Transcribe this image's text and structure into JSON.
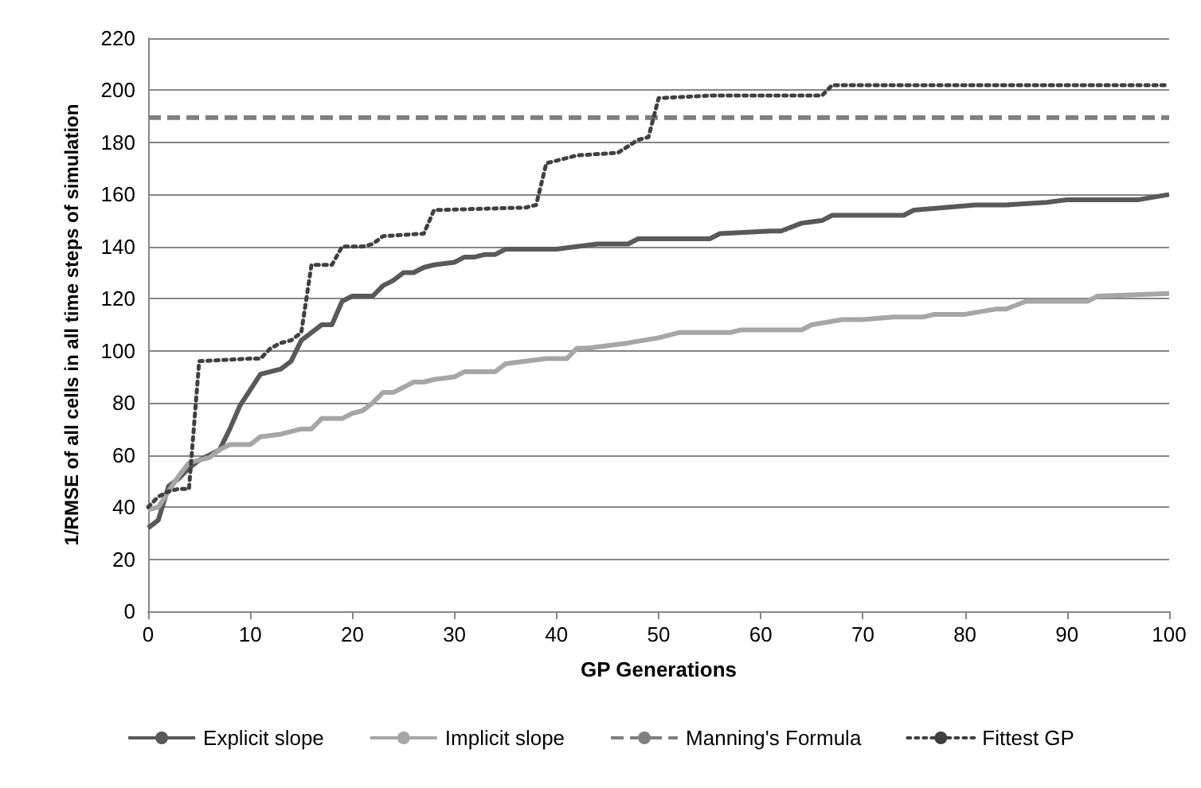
{
  "chart_data": {
    "type": "line",
    "xlabel": "GP Generations",
    "ylabel": "1/RMSE of all cells in all time steps of simulation",
    "xlim": [
      0,
      100
    ],
    "xticks": [
      0,
      10,
      20,
      30,
      40,
      50,
      60,
      70,
      80,
      90,
      100
    ],
    "ylim": [
      0,
      220
    ],
    "yticks": [
      0,
      20,
      40,
      60,
      80,
      100,
      120,
      140,
      160,
      180,
      200,
      220
    ],
    "grid": "y",
    "legend": "bottom",
    "marker": "none",
    "series": [
      {
        "name": "Explicit slope",
        "color": "#595959",
        "line_style": "solid",
        "x": [
          0,
          1,
          2,
          3,
          4,
          5,
          6,
          7,
          8,
          9,
          10,
          11,
          12,
          13,
          14,
          15,
          16,
          17,
          18,
          19,
          20,
          22,
          23,
          24,
          25,
          26,
          27,
          28,
          30,
          31,
          32,
          33,
          34,
          35,
          38,
          40,
          42,
          44,
          47,
          48,
          55,
          56,
          61,
          62,
          64,
          66,
          67,
          74,
          75,
          78,
          81,
          84,
          88,
          90,
          97,
          100
        ],
        "values": [
          32,
          35,
          48,
          51,
          55,
          58,
          60,
          62,
          70,
          79,
          85,
          91,
          92,
          93,
          96,
          104,
          107,
          110,
          110,
          119,
          121,
          121,
          125,
          127,
          130,
          130,
          132,
          133,
          134,
          136,
          136,
          137,
          137,
          139,
          139,
          139,
          140,
          141,
          141,
          143,
          143,
          145,
          146,
          146,
          149,
          150,
          152,
          152,
          154,
          155,
          156,
          156,
          157,
          158,
          158,
          160
        ]
      },
      {
        "name": "Implicit slope",
        "color": "#a6a6a6",
        "line_style": "solid",
        "x": [
          0,
          1,
          2,
          3,
          4,
          5,
          6,
          7,
          8,
          10,
          11,
          13,
          15,
          16,
          17,
          19,
          20,
          21,
          22,
          23,
          24,
          26,
          27,
          28,
          30,
          31,
          34,
          35,
          37,
          39,
          41,
          42,
          43,
          45,
          47,
          50,
          52,
          55,
          57,
          58,
          62,
          64,
          65,
          68,
          70,
          73,
          76,
          77,
          80,
          83,
          84,
          86,
          92,
          93,
          100
        ],
        "values": [
          39,
          40,
          46,
          52,
          57,
          58,
          59,
          62,
          64,
          64,
          67,
          68,
          70,
          70,
          74,
          74,
          76,
          77,
          80,
          84,
          84,
          88,
          88,
          89,
          90,
          92,
          92,
          95,
          96,
          97,
          97,
          101,
          101,
          102,
          103,
          105,
          107,
          107,
          107,
          108,
          108,
          108,
          110,
          112,
          112,
          113,
          113,
          114,
          114,
          116,
          116,
          119,
          119,
          121,
          122
        ]
      },
      {
        "name": "Manning's Formula",
        "color": "#7f7f7f",
        "line_style": "dashed",
        "x": [
          0,
          100
        ],
        "values": [
          189.5,
          189.5
        ]
      },
      {
        "name": "Fittest GP",
        "color": "#404040",
        "line_style": "dotted",
        "x": [
          0,
          1,
          2,
          3,
          4,
          5,
          10,
          11,
          12,
          13,
          14,
          15,
          16,
          17,
          18,
          19,
          21,
          22,
          23,
          27,
          28,
          37,
          38,
          39,
          40,
          42,
          46,
          48,
          49,
          50,
          55,
          66,
          67,
          100
        ],
        "values": [
          40,
          44,
          46,
          47,
          47,
          96,
          97,
          97,
          101,
          103,
          104,
          107,
          133,
          133,
          133,
          140,
          140,
          141,
          144,
          145,
          154,
          155,
          156,
          172,
          173,
          175,
          176,
          181,
          182,
          197,
          198,
          198,
          202,
          202
        ]
      }
    ]
  }
}
